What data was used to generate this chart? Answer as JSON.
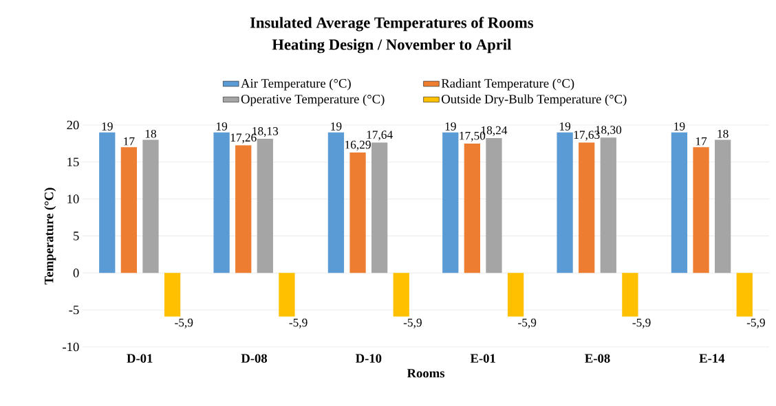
{
  "chart_data": {
    "type": "bar",
    "title": "Insulated Average Temperatures of Rooms",
    "subtitle": "Heating Design / November to April",
    "xlabel": "Rooms",
    "ylabel": "Temperature (°C)",
    "categories": [
      "D-01",
      "D-08",
      "D-10",
      "E-01",
      "E-08",
      "E-14"
    ],
    "series": [
      {
        "name": "Air Temperature (°C)",
        "color": "#5b9bd5",
        "values": [
          19,
          19,
          19,
          19,
          19,
          19
        ],
        "value_labels": [
          "19",
          "19",
          "19",
          "19",
          "19",
          "19"
        ]
      },
      {
        "name": "Radiant Temperature (°C)",
        "color": "#ed7d31",
        "values": [
          17,
          17.26,
          16.29,
          17.5,
          17.63,
          17
        ],
        "value_labels": [
          "17",
          "17,26",
          "16,29",
          "17,50",
          "17,63",
          "17"
        ]
      },
      {
        "name": "Operative Temperature (°C)",
        "color": "#a5a5a5",
        "values": [
          18,
          18.13,
          17.64,
          18.24,
          18.3,
          18
        ],
        "value_labels": [
          "18",
          "18,13",
          "17,64",
          "18,24",
          "18,30",
          "18"
        ]
      },
      {
        "name": "Outside Dry-Bulb Temperature (°C)",
        "color": "#ffc000",
        "values": [
          -5.9,
          -5.9,
          -5.9,
          -5.9,
          -5.9,
          -5.9
        ],
        "value_labels": [
          "-5,9",
          "-5,9",
          "-5,9",
          "-5,9",
          "-5,9",
          "-5,9"
        ]
      }
    ],
    "ylim": [
      -10,
      20
    ],
    "yticks": [
      -10,
      -5,
      0,
      5,
      10,
      15,
      20
    ],
    "grid": "y",
    "legend": "top"
  }
}
